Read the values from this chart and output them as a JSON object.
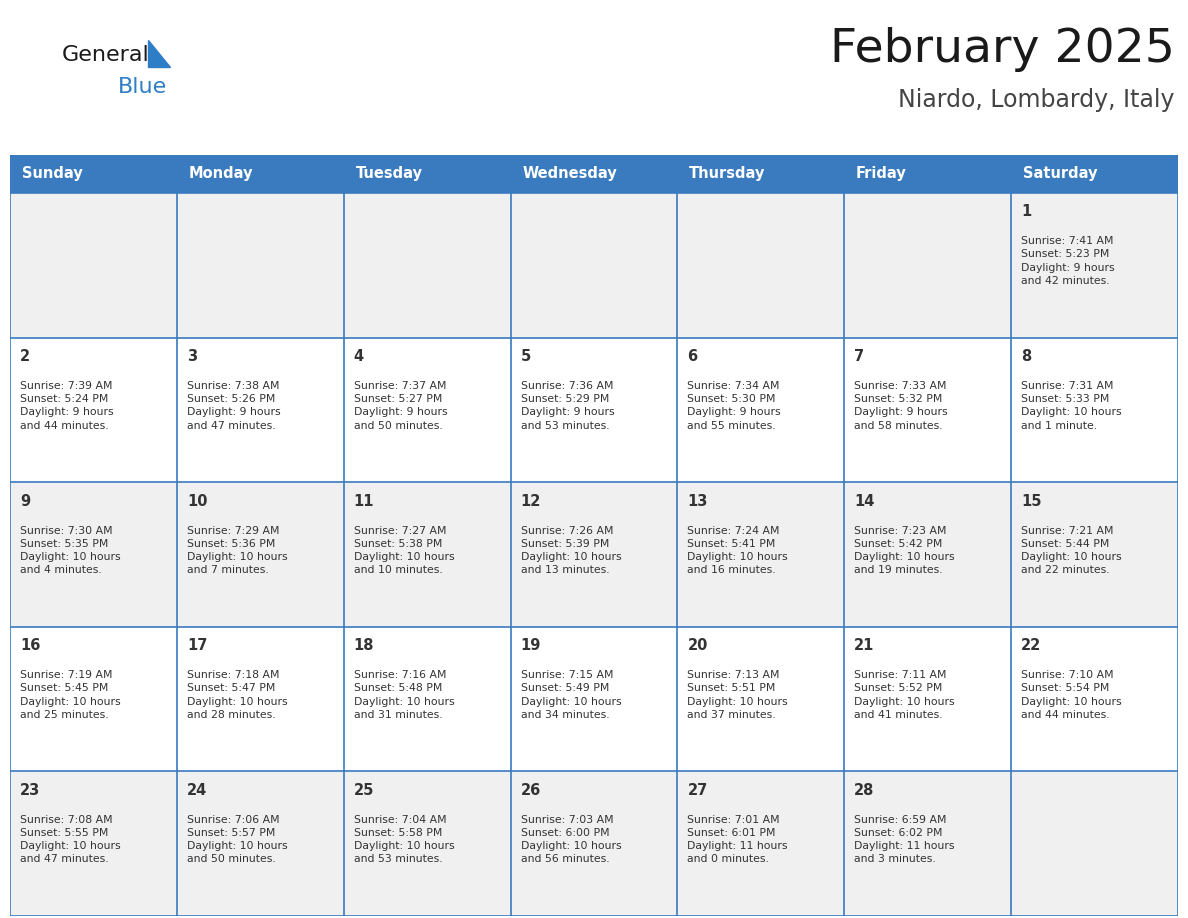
{
  "title": "February 2025",
  "subtitle": "Niardo, Lombardy, Italy",
  "days_of_week": [
    "Sunday",
    "Monday",
    "Tuesday",
    "Wednesday",
    "Thursday",
    "Friday",
    "Saturday"
  ],
  "header_bg": "#3a7abf",
  "header_text": "#ffffff",
  "cell_bg_odd": "#f0f0f0",
  "cell_bg_even": "#ffffff",
  "cell_border": "#3a7abf",
  "cell_text_color": "#333333",
  "title_color": "#1a1a1a",
  "subtitle_color": "#444444",
  "logo_general_color": "#1a1a1a",
  "logo_blue_color": "#2e7ec7",
  "weeks": [
    [
      null,
      null,
      null,
      null,
      null,
      null,
      1
    ],
    [
      2,
      3,
      4,
      5,
      6,
      7,
      8
    ],
    [
      9,
      10,
      11,
      12,
      13,
      14,
      15
    ],
    [
      16,
      17,
      18,
      19,
      20,
      21,
      22
    ],
    [
      23,
      24,
      25,
      26,
      27,
      28,
      null
    ]
  ],
  "cell_data": {
    "1": {
      "sunrise": "7:41 AM",
      "sunset": "5:23 PM",
      "daylight": "9 hours and 42 minutes."
    },
    "2": {
      "sunrise": "7:39 AM",
      "sunset": "5:24 PM",
      "daylight": "9 hours and 44 minutes."
    },
    "3": {
      "sunrise": "7:38 AM",
      "sunset": "5:26 PM",
      "daylight": "9 hours and 47 minutes."
    },
    "4": {
      "sunrise": "7:37 AM",
      "sunset": "5:27 PM",
      "daylight": "9 hours and 50 minutes."
    },
    "5": {
      "sunrise": "7:36 AM",
      "sunset": "5:29 PM",
      "daylight": "9 hours and 53 minutes."
    },
    "6": {
      "sunrise": "7:34 AM",
      "sunset": "5:30 PM",
      "daylight": "9 hours and 55 minutes."
    },
    "7": {
      "sunrise": "7:33 AM",
      "sunset": "5:32 PM",
      "daylight": "9 hours and 58 minutes."
    },
    "8": {
      "sunrise": "7:31 AM",
      "sunset": "5:33 PM",
      "daylight": "10 hours and 1 minute."
    },
    "9": {
      "sunrise": "7:30 AM",
      "sunset": "5:35 PM",
      "daylight": "10 hours and 4 minutes."
    },
    "10": {
      "sunrise": "7:29 AM",
      "sunset": "5:36 PM",
      "daylight": "10 hours and 7 minutes."
    },
    "11": {
      "sunrise": "7:27 AM",
      "sunset": "5:38 PM",
      "daylight": "10 hours and 10 minutes."
    },
    "12": {
      "sunrise": "7:26 AM",
      "sunset": "5:39 PM",
      "daylight": "10 hours and 13 minutes."
    },
    "13": {
      "sunrise": "7:24 AM",
      "sunset": "5:41 PM",
      "daylight": "10 hours and 16 minutes."
    },
    "14": {
      "sunrise": "7:23 AM",
      "sunset": "5:42 PM",
      "daylight": "10 hours and 19 minutes."
    },
    "15": {
      "sunrise": "7:21 AM",
      "sunset": "5:44 PM",
      "daylight": "10 hours and 22 minutes."
    },
    "16": {
      "sunrise": "7:19 AM",
      "sunset": "5:45 PM",
      "daylight": "10 hours and 25 minutes."
    },
    "17": {
      "sunrise": "7:18 AM",
      "sunset": "5:47 PM",
      "daylight": "10 hours and 28 minutes."
    },
    "18": {
      "sunrise": "7:16 AM",
      "sunset": "5:48 PM",
      "daylight": "10 hours and 31 minutes."
    },
    "19": {
      "sunrise": "7:15 AM",
      "sunset": "5:49 PM",
      "daylight": "10 hours and 34 minutes."
    },
    "20": {
      "sunrise": "7:13 AM",
      "sunset": "5:51 PM",
      "daylight": "10 hours and 37 minutes."
    },
    "21": {
      "sunrise": "7:11 AM",
      "sunset": "5:52 PM",
      "daylight": "10 hours and 41 minutes."
    },
    "22": {
      "sunrise": "7:10 AM",
      "sunset": "5:54 PM",
      "daylight": "10 hours and 44 minutes."
    },
    "23": {
      "sunrise": "7:08 AM",
      "sunset": "5:55 PM",
      "daylight": "10 hours and 47 minutes."
    },
    "24": {
      "sunrise": "7:06 AM",
      "sunset": "5:57 PM",
      "daylight": "10 hours and 50 minutes."
    },
    "25": {
      "sunrise": "7:04 AM",
      "sunset": "5:58 PM",
      "daylight": "10 hours and 53 minutes."
    },
    "26": {
      "sunrise": "7:03 AM",
      "sunset": "6:00 PM",
      "daylight": "10 hours and 56 minutes."
    },
    "27": {
      "sunrise": "7:01 AM",
      "sunset": "6:01 PM",
      "daylight": "11 hours and 0 minutes."
    },
    "28": {
      "sunrise": "6:59 AM",
      "sunset": "6:02 PM",
      "daylight": "11 hours and 3 minutes."
    }
  }
}
